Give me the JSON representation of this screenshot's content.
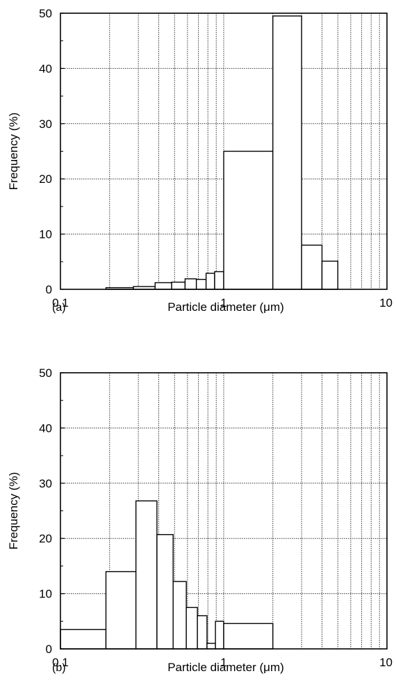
{
  "chart_data": [
    {
      "type": "bar",
      "panel_label": "(a)",
      "xlabel": "Particle diameter (μm)",
      "ylabel": "Frequency (%)",
      "xscale": "log",
      "xlim": [
        0.1,
        10
      ],
      "ylim": [
        0,
        50
      ],
      "xticks": [
        "0.1",
        "1",
        "10"
      ],
      "yticks": [
        "0",
        "10",
        "20",
        "30",
        "40",
        "50"
      ],
      "grid": true,
      "bins": [
        {
          "x0": 0.19,
          "x1": 0.28,
          "value": 0.3
        },
        {
          "x0": 0.28,
          "x1": 0.38,
          "value": 0.5
        },
        {
          "x0": 0.38,
          "x1": 0.48,
          "value": 1.2
        },
        {
          "x0": 0.48,
          "x1": 0.58,
          "value": 1.3
        },
        {
          "x0": 0.58,
          "x1": 0.68,
          "value": 1.9
        },
        {
          "x0": 0.68,
          "x1": 0.78,
          "value": 1.8
        },
        {
          "x0": 0.78,
          "x1": 0.88,
          "value": 2.9
        },
        {
          "x0": 0.88,
          "x1": 1.0,
          "value": 3.2
        },
        {
          "x0": 1.0,
          "x1": 2.0,
          "value": 25
        },
        {
          "x0": 2.0,
          "x1": 3.0,
          "value": 49.5
        },
        {
          "x0": 3.0,
          "x1": 4.0,
          "value": 8
        },
        {
          "x0": 4.0,
          "x1": 5.0,
          "value": 5.1
        }
      ]
    },
    {
      "type": "bar",
      "panel_label": "(b)",
      "xlabel": "Particle diameter (μm)",
      "ylabel": "Frequency (%)",
      "xscale": "log",
      "xlim": [
        0.1,
        10
      ],
      "ylim": [
        0,
        50
      ],
      "xticks": [
        "0.1",
        "1",
        "10"
      ],
      "yticks": [
        "0",
        "10",
        "20",
        "30",
        "40",
        "50"
      ],
      "grid": true,
      "bins": [
        {
          "x0": 0.1,
          "x1": 0.19,
          "value": 3.5
        },
        {
          "x0": 0.19,
          "x1": 0.29,
          "value": 14
        },
        {
          "x0": 0.29,
          "x1": 0.39,
          "value": 26.8
        },
        {
          "x0": 0.39,
          "x1": 0.49,
          "value": 20.7
        },
        {
          "x0": 0.49,
          "x1": 0.59,
          "value": 12.2
        },
        {
          "x0": 0.59,
          "x1": 0.69,
          "value": 7.5
        },
        {
          "x0": 0.69,
          "x1": 0.79,
          "value": 6.0
        },
        {
          "x0": 0.79,
          "x1": 0.89,
          "value": 1.0
        },
        {
          "x0": 0.89,
          "x1": 1.0,
          "value": 5.0
        },
        {
          "x0": 1.0,
          "x1": 2.0,
          "value": 4.6
        }
      ]
    }
  ]
}
